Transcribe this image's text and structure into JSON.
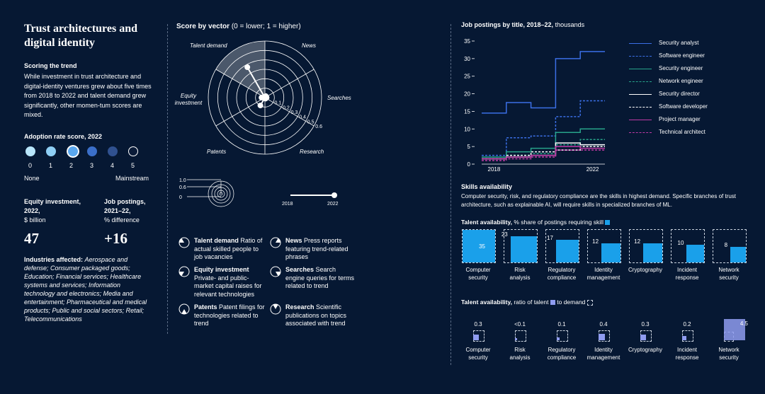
{
  "left": {
    "title": "Trust architectures and digital identity",
    "trend_heading": "Scoring the trend",
    "trend_text": "While investment in trust architecture and digital-identity ventures grew about five times from 2018 to 2022 and talent demand grew significantly, other momen-tum scores are mixed.",
    "adoption_heading": "Adoption rate score, 2022",
    "adoption_levels": [
      "0",
      "1",
      "2",
      "3",
      "4",
      "5"
    ],
    "adoption_selected": 2,
    "adoption_min_label": "None",
    "adoption_max_label": "Mainstream",
    "equity_title": "Equity investment, 2022,",
    "equity_unit": "$ billion",
    "equity_value": "47",
    "jobs_title": "Job postings, 2021–22,",
    "jobs_unit": "% difference",
    "jobs_value": "+16",
    "industries_label": "Industries affected:",
    "industries_text": "Aerospace and defense; Consumer packaged goods; Education; Financial services; Healthcare systems and services; Information technology and electronics; Media and entertainment; Pharmaceutical and medical products; Public and social sectors; Retail; Telecommunications"
  },
  "radar": {
    "title_bold": "Score by vector",
    "title_rest": "(0 = lower; 1 = higher)",
    "labels": {
      "talent": "Talent demand",
      "news": "News",
      "equity": "Equity investment",
      "searches": "Searches",
      "patents": "Patents",
      "research": "Research"
    },
    "ring_labels": [
      "0.1",
      "0.2",
      "0.3",
      "0.4",
      "0.5",
      "0.6"
    ],
    "scale_labels": [
      "1.0",
      "0.6",
      "0"
    ],
    "year_start": "2018",
    "year_end": "2022",
    "legend": [
      {
        "name": "Talent demand",
        "desc": "Ratio of actual skilled people to job vacancies"
      },
      {
        "name": "News",
        "desc": "Press reports featuring trend-related phrases"
      },
      {
        "name": "Equity investment",
        "desc": "Private- and public-market capital raises for relevant technologies"
      },
      {
        "name": "Searches",
        "desc": "Search engine queries for terms related to trend"
      },
      {
        "name": "Patents",
        "desc": "Patent filings for technologies related to trend"
      },
      {
        "name": "Research",
        "desc": "Scientific publications on topics associated with trend"
      }
    ]
  },
  "jobs_chart": {
    "title_bold": "Job postings by title, 2018–22,",
    "title_rest": "thousands",
    "colors": {
      "analyst": "#3b6fe6",
      "software_eng": "#3b6fe6",
      "security_eng": "#27a38a",
      "network_eng": "#27a38a",
      "director": "#ffffff",
      "developer": "#ffffff",
      "pm": "#c03aa6",
      "tech_arch": "#c03aa6"
    }
  },
  "chart_data": [
    {
      "type": "line",
      "title": "Job postings by title, 2018–22, thousands",
      "x": [
        "2018",
        "2019",
        "2020",
        "2021",
        "2022"
      ],
      "x_tick_labels": [
        "2018",
        "2022"
      ],
      "ylim": [
        0,
        35
      ],
      "y_ticks": [
        0,
        5,
        10,
        15,
        20,
        25,
        30,
        35
      ],
      "series": [
        {
          "name": "Security analyst",
          "values": [
            14.5,
            17.5,
            16,
            30,
            32
          ]
        },
        {
          "name": "Software engineer",
          "values": [
            2.5,
            7.5,
            8,
            13.5,
            18
          ]
        },
        {
          "name": "Security engineer",
          "values": [
            2,
            3.5,
            4.5,
            9,
            10
          ]
        },
        {
          "name": "Network engineer",
          "values": [
            1.5,
            2.5,
            3,
            5.5,
            7
          ]
        },
        {
          "name": "Security director",
          "values": [
            1.5,
            2,
            2.5,
            6,
            5.5
          ]
        },
        {
          "name": "Software developer",
          "values": [
            1.5,
            2.5,
            3.5,
            4,
            5
          ]
        },
        {
          "name": "Project manager",
          "values": [
            1.5,
            2,
            2.5,
            5,
            4.5
          ]
        },
        {
          "name": "Technical architect",
          "values": [
            1,
            1.5,
            2,
            4,
            4
          ]
        }
      ]
    },
    {
      "type": "radar",
      "title": "Score by vector (0 = lower; 1 = higher)",
      "axes": [
        "Talent demand",
        "News",
        "Searches",
        "Research",
        "Patents",
        "Equity investment"
      ],
      "series": [
        {
          "name": "2018",
          "values": [
            0.02,
            0.03,
            0.02,
            0.02,
            0.04,
            0.03
          ]
        },
        {
          "name": "2022",
          "values": [
            0.62,
            0.03,
            0.03,
            0.02,
            0.16,
            0.06
          ]
        }
      ]
    },
    {
      "type": "bar",
      "title": "Talent availability, % share of postings requiring skill",
      "categories": [
        "Computer security",
        "Risk analysis",
        "Regulatory compliance",
        "Identity management",
        "Cryptography",
        "Incident response",
        "Network security"
      ],
      "values": [
        35,
        23,
        17,
        12,
        12,
        10,
        8
      ]
    },
    {
      "type": "bar",
      "title": "Talent availability, ratio of talent to demand",
      "categories": [
        "Computer security",
        "Risk analysis",
        "Regulatory compliance",
        "Identity management",
        "Cryptography",
        "Incident response",
        "Network security"
      ],
      "value_labels": [
        "0.3",
        "<0.1",
        "0.1",
        "0.4",
        "0.3",
        "0.2",
        "4.5"
      ],
      "values": [
        0.3,
        0.05,
        0.1,
        0.4,
        0.3,
        0.2,
        4.5
      ]
    }
  ],
  "skills": {
    "heading": "Skills availability",
    "text": "Computer security, risk, and regulatory compliance are the skills in highest demand. Specific branches of trust architecture, such as explainable AI, will require skills in specialized branches of ML.",
    "share_title_bold": "Talent availability,",
    "share_title_rest": "% share of postings requiring skill",
    "ratio_title_bold": "Talent availability,",
    "ratio_title_rest": "ratio of talent",
    "ratio_title_mid": "to demand",
    "categories": [
      [
        "Computer",
        "security"
      ],
      [
        "Risk",
        "analysis"
      ],
      [
        "Regulatory",
        "compliance"
      ],
      [
        "Identity",
        "management"
      ],
      [
        "Cryptography",
        ""
      ],
      [
        "Incident",
        "response"
      ],
      [
        "Network",
        "security"
      ]
    ],
    "colors": {
      "share": "#1aa0ea",
      "ratio": "#8f9cf0"
    }
  }
}
